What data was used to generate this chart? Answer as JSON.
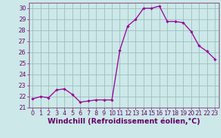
{
  "x": [
    0,
    1,
    2,
    3,
    4,
    5,
    6,
    7,
    8,
    9,
    10,
    11,
    12,
    13,
    14,
    15,
    16,
    17,
    18,
    19,
    20,
    21,
    22,
    23
  ],
  "y": [
    21.8,
    22.0,
    21.9,
    22.6,
    22.7,
    22.2,
    21.5,
    21.6,
    21.7,
    21.7,
    21.7,
    26.2,
    28.4,
    29.0,
    30.0,
    30.0,
    30.2,
    28.8,
    28.8,
    28.7,
    27.9,
    26.6,
    26.1,
    25.4
  ],
  "line_color": "#990099",
  "marker": "D",
  "marker_size": 2.0,
  "linewidth": 1.0,
  "background_color": "#cce8e8",
  "grid_color": "#99bbbb",
  "xlabel": "Windchill (Refroidissement éolien,°C)",
  "xlabel_fontsize": 7.5,
  "ylim": [
    21,
    30.5
  ],
  "xlim": [
    -0.5,
    23.5
  ],
  "yticks": [
    21,
    22,
    23,
    24,
    25,
    26,
    27,
    28,
    29,
    30
  ],
  "xticks": [
    0,
    1,
    2,
    3,
    4,
    5,
    6,
    7,
    8,
    9,
    10,
    11,
    12,
    13,
    14,
    15,
    16,
    17,
    18,
    19,
    20,
    21,
    22,
    23
  ],
  "tick_fontsize": 6.0,
  "spine_color": "#885588",
  "tick_color": "#660066"
}
